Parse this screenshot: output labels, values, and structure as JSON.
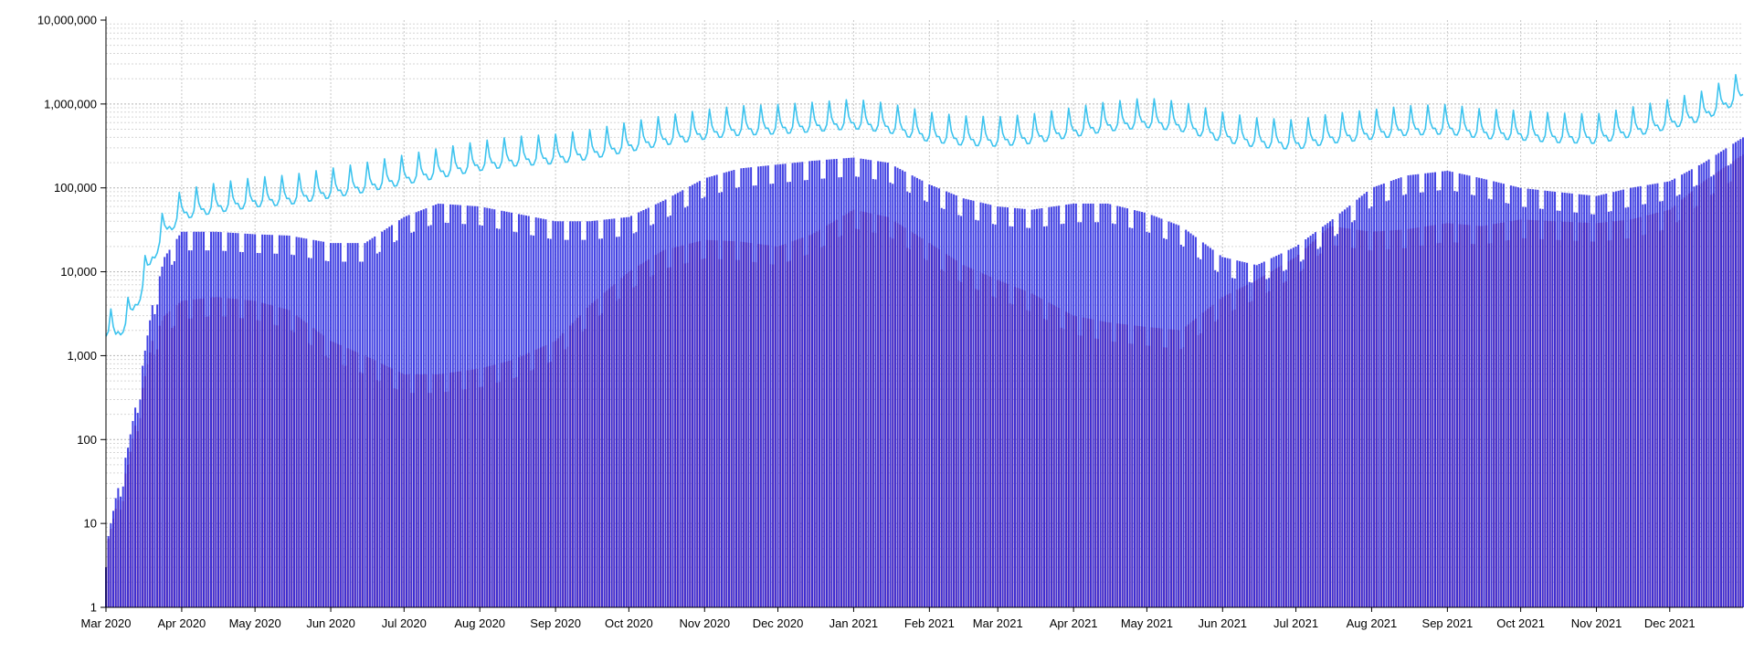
{
  "chart_data": {
    "type": "bar",
    "title": "",
    "xlabel": "",
    "ylabel": "",
    "y_scale": "log",
    "ylim": [
      1,
      10000000
    ],
    "xlim": [
      "2020-03-01",
      "2021-12-31"
    ],
    "grid": true,
    "y_ticks": [
      "1",
      "10",
      "100",
      "1,000",
      "10,000",
      "100,000",
      "1,000,000",
      "10,000,000"
    ],
    "y_tick_values": [
      1,
      10,
      100,
      1000,
      10000,
      100000,
      1000000,
      10000000
    ],
    "x_ticks": [
      "Mar 2020",
      "Apr 2020",
      "May 2020",
      "Jun 2020",
      "Jul 2020",
      "Aug 2020",
      "Sep 2020",
      "Oct 2020",
      "Nov 2020",
      "Dec 2020",
      "Jan 2021",
      "Feb 2021",
      "Mar 2021",
      "Apr 2021",
      "May 2021",
      "Jun 2021",
      "Jul 2021",
      "Aug 2021",
      "Sep 2021",
      "Oct 2021",
      "Nov 2021",
      "Dec 2021"
    ],
    "x_tick_dates": [
      "2020-03-01",
      "2020-04-01",
      "2020-05-01",
      "2020-06-01",
      "2020-07-01",
      "2020-08-01",
      "2020-09-01",
      "2020-10-01",
      "2020-11-01",
      "2020-12-01",
      "2021-01-01",
      "2021-02-01",
      "2021-03-01",
      "2021-04-01",
      "2021-05-01",
      "2021-06-01",
      "2021-07-01",
      "2021-08-01",
      "2021-09-01",
      "2021-10-01",
      "2021-11-01",
      "2021-12-01"
    ],
    "series": [
      {
        "style": "line",
        "color": "#3cc3ee",
        "points": [
          [
            "2020-03-01",
            2000
          ],
          [
            "2020-03-05",
            1800
          ],
          [
            "2020-03-10",
            2600
          ],
          [
            "2020-03-15",
            5500
          ],
          [
            "2020-03-20",
            15000
          ],
          [
            "2020-03-25",
            30000
          ],
          [
            "2020-04-01",
            50000
          ],
          [
            "2020-04-15",
            60000
          ],
          [
            "2020-05-01",
            70000
          ],
          [
            "2020-05-15",
            75000
          ],
          [
            "2020-06-01",
            90000
          ],
          [
            "2020-06-15",
            105000
          ],
          [
            "2020-07-01",
            130000
          ],
          [
            "2020-07-15",
            155000
          ],
          [
            "2020-08-01",
            190000
          ],
          [
            "2020-08-15",
            215000
          ],
          [
            "2020-09-01",
            230000
          ],
          [
            "2020-09-15",
            260000
          ],
          [
            "2020-10-01",
            320000
          ],
          [
            "2020-10-15",
            380000
          ],
          [
            "2020-11-01",
            450000
          ],
          [
            "2020-11-15",
            500000
          ],
          [
            "2020-12-01",
            520000
          ],
          [
            "2020-12-15",
            550000
          ],
          [
            "2021-01-01",
            600000
          ],
          [
            "2021-01-15",
            540000
          ],
          [
            "2021-02-01",
            420000
          ],
          [
            "2021-02-15",
            380000
          ],
          [
            "2021-03-01",
            370000
          ],
          [
            "2021-03-15",
            400000
          ],
          [
            "2021-04-01",
            480000
          ],
          [
            "2021-04-15",
            560000
          ],
          [
            "2021-05-01",
            620000
          ],
          [
            "2021-05-15",
            560000
          ],
          [
            "2021-06-01",
            420000
          ],
          [
            "2021-06-15",
            360000
          ],
          [
            "2021-07-01",
            340000
          ],
          [
            "2021-07-15",
            400000
          ],
          [
            "2021-08-01",
            450000
          ],
          [
            "2021-08-15",
            500000
          ],
          [
            "2021-09-01",
            520000
          ],
          [
            "2021-09-15",
            460000
          ],
          [
            "2021-10-01",
            440000
          ],
          [
            "2021-10-15",
            410000
          ],
          [
            "2021-11-01",
            400000
          ],
          [
            "2021-11-15",
            480000
          ],
          [
            "2021-12-01",
            600000
          ],
          [
            "2021-12-15",
            760000
          ],
          [
            "2021-12-31",
            1300000
          ]
        ]
      },
      {
        "style": "bar",
        "color": "#2e2ee0",
        "points": [
          [
            "2020-03-01",
            5
          ],
          [
            "2020-03-05",
            20
          ],
          [
            "2020-03-10",
            80
          ],
          [
            "2020-03-15",
            500
          ],
          [
            "2020-03-20",
            4000
          ],
          [
            "2020-03-25",
            15000
          ],
          [
            "2020-04-01",
            30000
          ],
          [
            "2020-04-15",
            30000
          ],
          [
            "2020-05-01",
            28000
          ],
          [
            "2020-05-15",
            27000
          ],
          [
            "2020-06-01",
            22000
          ],
          [
            "2020-06-15",
            22000
          ],
          [
            "2020-07-01",
            45000
          ],
          [
            "2020-07-15",
            65000
          ],
          [
            "2020-08-01",
            60000
          ],
          [
            "2020-08-15",
            50000
          ],
          [
            "2020-09-01",
            40000
          ],
          [
            "2020-09-15",
            40000
          ],
          [
            "2020-10-01",
            45000
          ],
          [
            "2020-10-15",
            70000
          ],
          [
            "2020-11-01",
            130000
          ],
          [
            "2020-11-15",
            170000
          ],
          [
            "2020-12-01",
            190000
          ],
          [
            "2020-12-15",
            210000
          ],
          [
            "2021-01-01",
            230000
          ],
          [
            "2021-01-15",
            200000
          ],
          [
            "2021-02-01",
            110000
          ],
          [
            "2021-02-15",
            75000
          ],
          [
            "2021-03-01",
            60000
          ],
          [
            "2021-03-15",
            55000
          ],
          [
            "2021-04-01",
            65000
          ],
          [
            "2021-04-15",
            65000
          ],
          [
            "2021-05-01",
            50000
          ],
          [
            "2021-05-15",
            35000
          ],
          [
            "2021-06-01",
            15000
          ],
          [
            "2021-06-15",
            12000
          ],
          [
            "2021-07-01",
            20000
          ],
          [
            "2021-07-15",
            40000
          ],
          [
            "2021-08-01",
            100000
          ],
          [
            "2021-08-15",
            140000
          ],
          [
            "2021-09-01",
            160000
          ],
          [
            "2021-09-15",
            130000
          ],
          [
            "2021-10-01",
            100000
          ],
          [
            "2021-10-15",
            90000
          ],
          [
            "2021-11-01",
            80000
          ],
          [
            "2021-11-15",
            100000
          ],
          [
            "2021-12-01",
            120000
          ],
          [
            "2021-12-15",
            200000
          ],
          [
            "2021-12-31",
            400000
          ]
        ]
      },
      {
        "style": "bar",
        "color": "#c0284a",
        "points": [
          [
            "2020-03-01",
            5
          ],
          [
            "2020-03-05",
            15
          ],
          [
            "2020-03-10",
            50
          ],
          [
            "2020-03-15",
            300
          ],
          [
            "2020-03-20",
            1500
          ],
          [
            "2020-03-25",
            3000
          ],
          [
            "2020-04-01",
            4500
          ],
          [
            "2020-04-15",
            5000
          ],
          [
            "2020-05-01",
            4500
          ],
          [
            "2020-05-15",
            3500
          ],
          [
            "2020-06-01",
            1500
          ],
          [
            "2020-06-15",
            1000
          ],
          [
            "2020-07-01",
            600
          ],
          [
            "2020-07-15",
            600
          ],
          [
            "2020-08-01",
            700
          ],
          [
            "2020-08-15",
            900
          ],
          [
            "2020-09-01",
            1500
          ],
          [
            "2020-09-15",
            4000
          ],
          [
            "2020-10-01",
            10000
          ],
          [
            "2020-10-15",
            18000
          ],
          [
            "2020-11-01",
            24000
          ],
          [
            "2020-11-15",
            23000
          ],
          [
            "2020-12-01",
            20000
          ],
          [
            "2020-12-15",
            28000
          ],
          [
            "2021-01-01",
            55000
          ],
          [
            "2021-01-15",
            45000
          ],
          [
            "2021-02-01",
            22000
          ],
          [
            "2021-02-15",
            12000
          ],
          [
            "2021-03-01",
            8000
          ],
          [
            "2021-03-15",
            5500
          ],
          [
            "2021-04-01",
            3000
          ],
          [
            "2021-04-15",
            2500
          ],
          [
            "2021-05-01",
            2200
          ],
          [
            "2021-05-15",
            2000
          ],
          [
            "2021-06-01",
            5000
          ],
          [
            "2021-06-15",
            8000
          ],
          [
            "2021-07-01",
            15000
          ],
          [
            "2021-07-15",
            35000
          ],
          [
            "2021-08-01",
            30000
          ],
          [
            "2021-08-15",
            32000
          ],
          [
            "2021-09-01",
            38000
          ],
          [
            "2021-09-15",
            35000
          ],
          [
            "2021-10-01",
            42000
          ],
          [
            "2021-10-15",
            40000
          ],
          [
            "2021-11-01",
            38000
          ],
          [
            "2021-11-15",
            42000
          ],
          [
            "2021-12-01",
            55000
          ],
          [
            "2021-12-15",
            120000
          ],
          [
            "2021-12-31",
            250000
          ]
        ]
      }
    ]
  }
}
